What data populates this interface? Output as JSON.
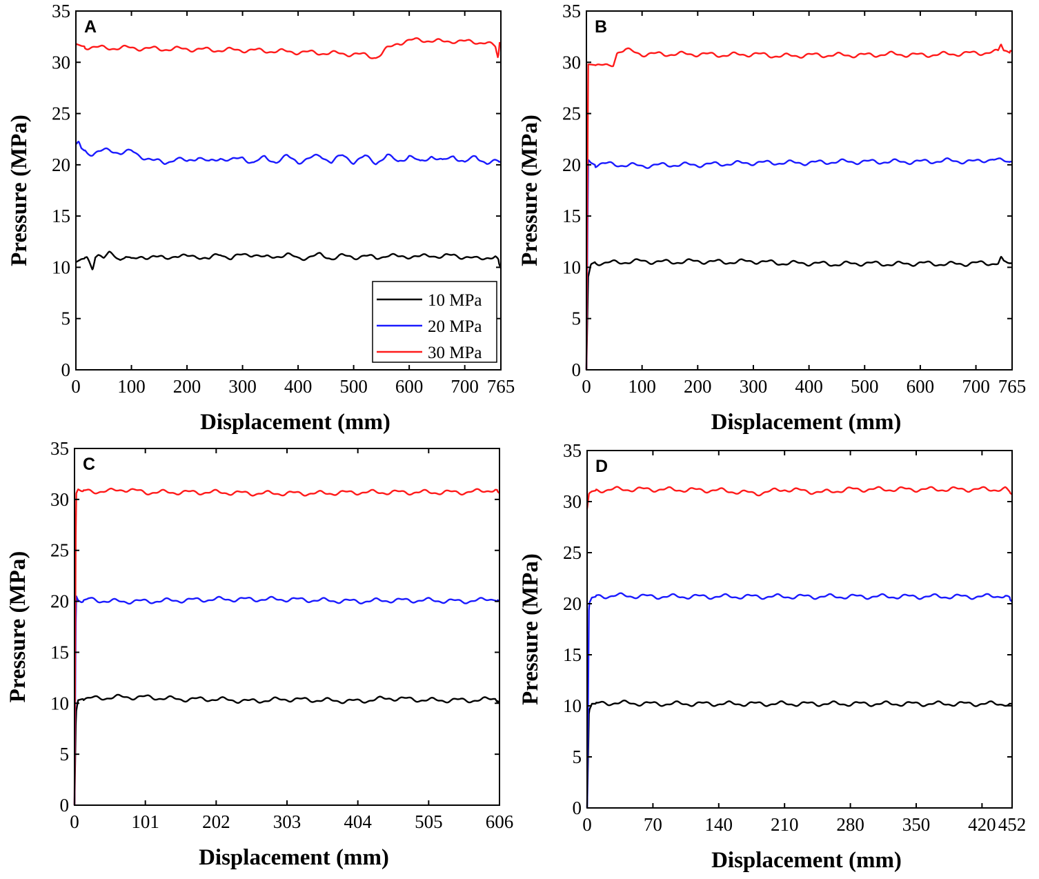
{
  "series_colors": {
    "10 MPa": "#000000",
    "20 MPa": "#1a1aff",
    "30 MPa": "#ff1a1a"
  },
  "chart_data": [
    {
      "type": "line",
      "panel_label": "A",
      "xlabel": "Displacement (mm)",
      "ylabel": "Pressure (MPa)",
      "xlim": [
        0,
        765
      ],
      "ylim": [
        0,
        35
      ],
      "xticks": [
        0,
        100,
        200,
        300,
        400,
        500,
        600,
        700,
        765
      ],
      "yticks": [
        0,
        5,
        10,
        15,
        20,
        25,
        30,
        35
      ],
      "grid": false,
      "legend": {
        "placement": "bottom-right",
        "entries": [
          "10 MPa",
          "20 MPa",
          "30 MPa"
        ]
      },
      "series": [
        {
          "name": "10 MPa",
          "color": "#000000",
          "x": [
            0,
            10,
            20,
            25,
            30,
            35,
            40,
            50,
            60,
            70,
            80,
            90,
            100,
            110,
            120,
            140,
            160,
            180,
            200,
            220,
            240,
            260,
            280,
            300,
            320,
            340,
            360,
            380,
            400,
            420,
            440,
            460,
            480,
            500,
            520,
            540,
            560,
            580,
            600,
            620,
            640,
            660,
            680,
            700,
            720,
            740,
            755,
            760,
            765
          ],
          "y": [
            10.5,
            10.8,
            10.9,
            10.4,
            9.9,
            11.2,
            11.3,
            10.9,
            11.3,
            11.1,
            10.8,
            11.2,
            10.7,
            10.8,
            11.0,
            11.1,
            10.8,
            11.2,
            11.0,
            11.1,
            10.8,
            11.3,
            10.9,
            11.2,
            11.3,
            10.9,
            11.1,
            11.2,
            10.9,
            11.0,
            11.2,
            10.9,
            11.1,
            11.0,
            11.1,
            10.9,
            11.2,
            11.0,
            11.1,
            11.0,
            11.2,
            11.0,
            11.2,
            11.0,
            10.8,
            11.0,
            11.0,
            10.6,
            9.9
          ]
        },
        {
          "name": "20 MPa",
          "color": "#1a1aff",
          "x": [
            0,
            5,
            10,
            20,
            30,
            40,
            60,
            80,
            100,
            110,
            120,
            140,
            160,
            180,
            200,
            220,
            240,
            260,
            280,
            300,
            320,
            340,
            360,
            380,
            400,
            420,
            440,
            460,
            480,
            500,
            520,
            540,
            560,
            580,
            600,
            620,
            640,
            660,
            680,
            700,
            720,
            740,
            765
          ],
          "y": [
            22.0,
            22.3,
            21.6,
            21.2,
            21.1,
            21.3,
            21.4,
            21.2,
            21.3,
            21.0,
            20.8,
            20.4,
            20.2,
            20.6,
            20.3,
            20.8,
            20.2,
            20.7,
            20.4,
            20.7,
            20.2,
            20.7,
            20.3,
            20.8,
            20.3,
            20.6,
            20.9,
            20.3,
            20.9,
            20.3,
            20.8,
            20.2,
            20.9,
            20.3,
            20.9,
            20.2,
            20.9,
            20.3,
            20.9,
            20.2,
            20.8,
            20.2,
            20.3
          ]
        },
        {
          "name": "30 MPa",
          "color": "#ff1a1a",
          "x": [
            0,
            10,
            20,
            50,
            100,
            150,
            200,
            250,
            300,
            350,
            400,
            450,
            500,
            520,
            530,
            540,
            550,
            560,
            580,
            600,
            620,
            640,
            660,
            680,
            700,
            720,
            740,
            750,
            755,
            760,
            763,
            765
          ],
          "y": [
            31.8,
            31.6,
            31.5,
            31.4,
            31.4,
            31.3,
            31.3,
            31.2,
            31.2,
            31.1,
            31.0,
            30.9,
            30.8,
            30.7,
            30.6,
            30.5,
            30.8,
            31.3,
            31.9,
            32.1,
            32.2,
            32.1,
            32.0,
            32.1,
            32.0,
            32.0,
            31.9,
            31.6,
            31.5,
            30.4,
            32.0,
            31.7
          ]
        }
      ]
    },
    {
      "type": "line",
      "panel_label": "B",
      "xlabel": "Displacement (mm)",
      "ylabel": "Pressure (MPa)",
      "xlim": [
        0,
        765
      ],
      "ylim": [
        0,
        35
      ],
      "xticks": [
        0,
        100,
        200,
        300,
        400,
        500,
        600,
        700,
        765
      ],
      "yticks": [
        0,
        5,
        10,
        15,
        20,
        25,
        30,
        35
      ],
      "grid": false,
      "series": [
        {
          "name": "10 MPa",
          "color": "#000000",
          "x": [
            0,
            3,
            8,
            15,
            30,
            60,
            100,
            150,
            200,
            250,
            300,
            350,
            400,
            450,
            500,
            550,
            600,
            650,
            700,
            740,
            745,
            750,
            765
          ],
          "y": [
            0,
            9.0,
            10.3,
            10.5,
            10.4,
            10.5,
            10.6,
            10.5,
            10.6,
            10.5,
            10.6,
            10.4,
            10.4,
            10.3,
            10.4,
            10.3,
            10.4,
            10.3,
            10.4,
            10.4,
            10.9,
            10.4,
            10.4
          ]
        },
        {
          "name": "20 MPa",
          "color": "#1a1aff",
          "x": [
            0,
            3,
            8,
            15,
            30,
            60,
            100,
            150,
            200,
            250,
            300,
            350,
            400,
            450,
            500,
            550,
            600,
            650,
            700,
            730,
            740,
            765
          ],
          "y": [
            0,
            20.5,
            20.2,
            20.0,
            20.1,
            20.0,
            19.9,
            20.0,
            20.0,
            20.1,
            20.2,
            20.2,
            20.2,
            20.3,
            20.3,
            20.3,
            20.3,
            20.4,
            20.3,
            20.6,
            20.4,
            20.3
          ]
        },
        {
          "name": "30 MPa",
          "color": "#ff1a1a",
          "x": [
            0,
            3,
            5,
            20,
            40,
            48,
            55,
            70,
            100,
            150,
            200,
            250,
            300,
            350,
            400,
            450,
            500,
            550,
            600,
            650,
            700,
            740,
            745,
            750,
            765
          ],
          "y": [
            0,
            29.8,
            29.8,
            29.7,
            29.6,
            29.8,
            31.0,
            31.2,
            30.8,
            30.8,
            30.8,
            30.7,
            30.8,
            30.6,
            30.7,
            30.7,
            30.7,
            30.8,
            30.7,
            30.8,
            30.9,
            31.0,
            31.8,
            31.2,
            31.1
          ]
        }
      ]
    },
    {
      "type": "line",
      "panel_label": "C",
      "xlabel": "Displacement (mm)",
      "ylabel": "Pressure (MPa)",
      "xlim": [
        0,
        606
      ],
      "ylim": [
        0,
        35
      ],
      "xticks": [
        0,
        101,
        202,
        303,
        404,
        505,
        606
      ],
      "yticks": [
        0,
        5,
        10,
        15,
        20,
        25,
        30,
        35
      ],
      "grid": false,
      "series": [
        {
          "name": "10 MPa",
          "color": "#000000",
          "x": [
            0,
            2,
            5,
            10,
            30,
            60,
            101,
            150,
            202,
            250,
            303,
            350,
            404,
            450,
            505,
            550,
            580,
            600,
            606
          ],
          "y": [
            0,
            9.0,
            10.3,
            10.4,
            10.5,
            10.6,
            10.6,
            10.4,
            10.4,
            10.2,
            10.4,
            10.3,
            10.2,
            10.5,
            10.3,
            10.3,
            10.3,
            10.5,
            10.0
          ]
        },
        {
          "name": "20 MPa",
          "color": "#1a1aff",
          "x": [
            0,
            2,
            5,
            10,
            20,
            50,
            101,
            150,
            202,
            250,
            303,
            350,
            404,
            450,
            505,
            550,
            580,
            600,
            606
          ],
          "y": [
            0,
            20.6,
            20.1,
            19.9,
            20.2,
            20.0,
            20.0,
            20.1,
            20.2,
            20.2,
            20.2,
            20.1,
            20.0,
            20.1,
            20.1,
            20.0,
            20.1,
            20.3,
            20.0
          ]
        },
        {
          "name": "30 MPa",
          "color": "#ff1a1a",
          "x": [
            0,
            2,
            5,
            10,
            20,
            50,
            70,
            101,
            150,
            202,
            250,
            303,
            350,
            404,
            450,
            505,
            550,
            580,
            600,
            606
          ],
          "y": [
            0,
            30.5,
            31.0,
            30.8,
            30.8,
            30.8,
            31.0,
            30.7,
            30.7,
            30.7,
            30.6,
            30.6,
            30.6,
            30.7,
            30.7,
            30.7,
            30.7,
            30.8,
            31.0,
            30.6
          ]
        }
      ]
    },
    {
      "type": "line",
      "panel_label": "D",
      "xlabel": "Displacement (mm)",
      "ylabel": "Pressure (MPa)",
      "xlim": [
        0,
        452
      ],
      "ylim": [
        0,
        35
      ],
      "xticks": [
        0,
        70,
        140,
        210,
        280,
        350,
        420,
        452
      ],
      "yticks": [
        0,
        5,
        10,
        15,
        20,
        25,
        30,
        35
      ],
      "grid": false,
      "series": [
        {
          "name": "10 MPa",
          "color": "#000000",
          "x": [
            0,
            2,
            5,
            10,
            30,
            70,
            140,
            210,
            280,
            350,
            420,
            452
          ],
          "y": [
            0,
            9.5,
            10.2,
            10.2,
            10.3,
            10.2,
            10.2,
            10.2,
            10.2,
            10.2,
            10.2,
            10.2
          ]
        },
        {
          "name": "20 MPa",
          "color": "#1a1aff",
          "x": [
            0,
            2,
            5,
            10,
            30,
            70,
            140,
            210,
            280,
            350,
            420,
            445,
            452
          ],
          "y": [
            0,
            20.0,
            20.6,
            20.7,
            20.8,
            20.7,
            20.7,
            20.7,
            20.7,
            20.7,
            20.7,
            20.8,
            20.2
          ]
        },
        {
          "name": "30 MPa",
          "color": "#ff1a1a",
          "x": [
            0,
            2,
            5,
            10,
            30,
            70,
            140,
            180,
            210,
            250,
            280,
            350,
            420,
            445,
            452
          ],
          "y": [
            29.3,
            30.8,
            31.0,
            31.1,
            31.2,
            31.2,
            31.1,
            30.8,
            31.2,
            30.9,
            31.2,
            31.2,
            31.2,
            31.2,
            30.7
          ]
        }
      ]
    }
  ]
}
